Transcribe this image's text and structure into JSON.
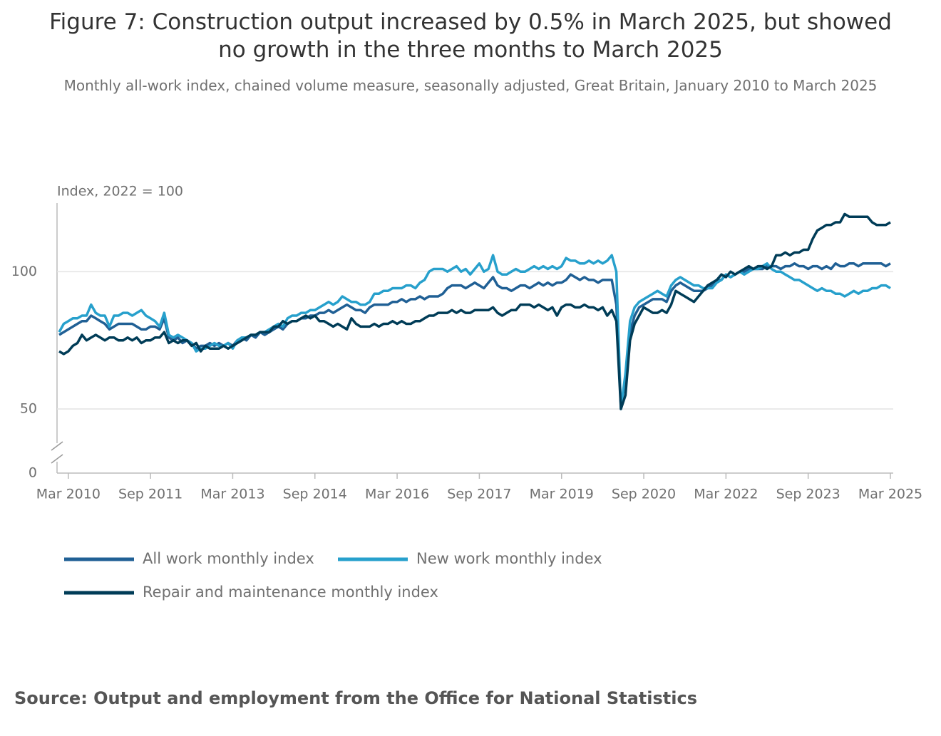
{
  "chart_data": {
    "type": "line",
    "title": "Figure 7: Construction output increased by 0.5% in March 2025, but showed no growth in the three months to March 2025",
    "subtitle": "Monthly all-work index, chained volume measure, seasonally adjusted, Great Britain, January 2010 to March 2025",
    "y_label": "Index, 2022 = 100",
    "categories": [
      null,
      null,
      "Mar 2010",
      null,
      null,
      null,
      null,
      null,
      null,
      null,
      null,
      null,
      null,
      null,
      null,
      null,
      null,
      null,
      null,
      null,
      "Sep 2011",
      null,
      null,
      null,
      null,
      null,
      null,
      null,
      null,
      null,
      null,
      null,
      null,
      null,
      null,
      null,
      null,
      null,
      "Mar 2013",
      null,
      null,
      null,
      null,
      null,
      null,
      null,
      null,
      null,
      null,
      null,
      null,
      null,
      null,
      null,
      null,
      null,
      "Sep 2014",
      null,
      null,
      null,
      null,
      null,
      null,
      null,
      null,
      null,
      null,
      null,
      null,
      null,
      null,
      null,
      null,
      null,
      "Mar 2016",
      null,
      null,
      null,
      null,
      null,
      null,
      null,
      null,
      null,
      null,
      null,
      null,
      null,
      null,
      null,
      null,
      null,
      "Sep 2017",
      null,
      null,
      null,
      null,
      null,
      null,
      null,
      null,
      null,
      null,
      null,
      null,
      null,
      null,
      null,
      null,
      null,
      "Mar 2019",
      null,
      null,
      null,
      null,
      null,
      null,
      null,
      null,
      null,
      null,
      null,
      null,
      null,
      null,
      null,
      null,
      null,
      "Sep 2020",
      null,
      null,
      null,
      null,
      null,
      null,
      null,
      null,
      null,
      null,
      null,
      null,
      null,
      null,
      null,
      null,
      null,
      "Mar 2022",
      null,
      null,
      null,
      null,
      null,
      null,
      null,
      null,
      null,
      null,
      null,
      null,
      null,
      null,
      null,
      null,
      null,
      "Sep 2023",
      null,
      null,
      null,
      null,
      null,
      null,
      null,
      null,
      null,
      null,
      null,
      null,
      null,
      null,
      null,
      null,
      null,
      "Mar 2025"
    ],
    "series": [
      {
        "name": "All work monthly index",
        "color": "#206095",
        "values": [
          77,
          78,
          79,
          80,
          81,
          82,
          82,
          84,
          83,
          82,
          81,
          79,
          80,
          81,
          81,
          81,
          81,
          80,
          79,
          79,
          80,
          80,
          79,
          83,
          76,
          75,
          76,
          74,
          75,
          74,
          72,
          73,
          73,
          74,
          73,
          74,
          73,
          74,
          73,
          75,
          76,
          75,
          77,
          76,
          78,
          77,
          78,
          79,
          80,
          79,
          81,
          82,
          82,
          83,
          83,
          84,
          84,
          85,
          85,
          86,
          85,
          86,
          87,
          88,
          87,
          86,
          86,
          85,
          87,
          88,
          88,
          88,
          88,
          89,
          89,
          90,
          89,
          90,
          90,
          91,
          90,
          91,
          91,
          91,
          92,
          94,
          95,
          95,
          95,
          94,
          95,
          96,
          95,
          94,
          96,
          98,
          95,
          94,
          94,
          93,
          94,
          95,
          95,
          94,
          95,
          96,
          95,
          96,
          95,
          96,
          96,
          97,
          99,
          98,
          97,
          98,
          97,
          97,
          96,
          97,
          97,
          97,
          88,
          51,
          61,
          78,
          84,
          87,
          88,
          89,
          90,
          90,
          90,
          89,
          93,
          95,
          96,
          95,
          94,
          93,
          93,
          93,
          94,
          95,
          97,
          97,
          99,
          98,
          99,
          100,
          100,
          101,
          101,
          101,
          101,
          102,
          102,
          102,
          101,
          102,
          102,
          103,
          102,
          102,
          101,
          102,
          102,
          101,
          102,
          101,
          103,
          102,
          102,
          103,
          103,
          102,
          103,
          103,
          103,
          103,
          103,
          102,
          103
        ]
      },
      {
        "name": "New work monthly index",
        "color": "#27a0cc",
        "values": [
          78,
          81,
          82,
          83,
          83,
          84,
          84,
          88,
          85,
          84,
          84,
          80,
          84,
          84,
          85,
          85,
          84,
          85,
          86,
          84,
          83,
          82,
          80,
          85,
          77,
          76,
          77,
          76,
          75,
          74,
          71,
          72,
          72,
          73,
          74,
          73,
          73,
          74,
          72,
          75,
          76,
          76,
          77,
          77,
          78,
          78,
          79,
          80,
          81,
          80,
          83,
          84,
          84,
          85,
          85,
          86,
          86,
          87,
          88,
          89,
          88,
          89,
          91,
          90,
          89,
          89,
          88,
          88,
          89,
          92,
          92,
          93,
          93,
          94,
          94,
          94,
          95,
          95,
          94,
          96,
          97,
          100,
          101,
          101,
          101,
          100,
          101,
          102,
          100,
          101,
          99,
          101,
          103,
          100,
          101,
          106,
          100,
          99,
          99,
          100,
          101,
          100,
          100,
          101,
          102,
          101,
          102,
          101,
          102,
          101,
          102,
          105,
          104,
          104,
          103,
          103,
          104,
          103,
          104,
          103,
          104,
          106,
          100,
          50,
          63,
          82,
          87,
          89,
          90,
          91,
          92,
          93,
          92,
          91,
          95,
          97,
          98,
          97,
          96,
          95,
          95,
          94,
          94,
          94,
          96,
          97,
          99,
          98,
          99,
          100,
          99,
          100,
          101,
          101,
          102,
          103,
          101,
          100,
          100,
          99,
          98,
          97,
          97,
          96,
          95,
          94,
          93,
          94,
          93,
          93,
          92,
          92,
          91,
          92,
          93,
          92,
          93,
          93,
          94,
          94,
          95,
          95,
          94
        ]
      },
      {
        "name": "Repair and maintenance monthly index",
        "color": "#003c57",
        "values": [
          71,
          70,
          71,
          73,
          74,
          77,
          75,
          76,
          77,
          76,
          75,
          76,
          76,
          75,
          75,
          76,
          75,
          76,
          74,
          75,
          75,
          76,
          76,
          78,
          74,
          75,
          74,
          75,
          75,
          73,
          74,
          71,
          73,
          72,
          72,
          72,
          73,
          72,
          73,
          74,
          75,
          76,
          77,
          77,
          78,
          78,
          78,
          80,
          80,
          82,
          81,
          82,
          82,
          83,
          84,
          83,
          84,
          82,
          82,
          81,
          80,
          81,
          80,
          79,
          83,
          81,
          80,
          80,
          80,
          81,
          80,
          81,
          81,
          82,
          81,
          82,
          81,
          81,
          82,
          82,
          83,
          84,
          84,
          85,
          85,
          85,
          86,
          85,
          86,
          85,
          85,
          86,
          86,
          86,
          86,
          87,
          85,
          84,
          85,
          86,
          86,
          88,
          88,
          88,
          87,
          88,
          87,
          86,
          87,
          84,
          87,
          88,
          88,
          87,
          87,
          88,
          87,
          87,
          86,
          87,
          84,
          86,
          82,
          50,
          55,
          75,
          81,
          84,
          87,
          86,
          85,
          85,
          86,
          85,
          88,
          93,
          92,
          91,
          90,
          89,
          91,
          93,
          95,
          96,
          97,
          99,
          98,
          100,
          99,
          100,
          101,
          102,
          101,
          102,
          102,
          101,
          102,
          106,
          106,
          107,
          106,
          107,
          107,
          108,
          108,
          112,
          115,
          116,
          117,
          117,
          118,
          118,
          121,
          120,
          120,
          120,
          120,
          120,
          118,
          117,
          117,
          117,
          118
        ]
      }
    ],
    "ylim": [
      0,
      125
    ],
    "yticks": [
      0,
      50,
      100
    ],
    "axis_break": true,
    "grid": true
  },
  "source": "Source: Output and employment from the Office for National Statistics"
}
